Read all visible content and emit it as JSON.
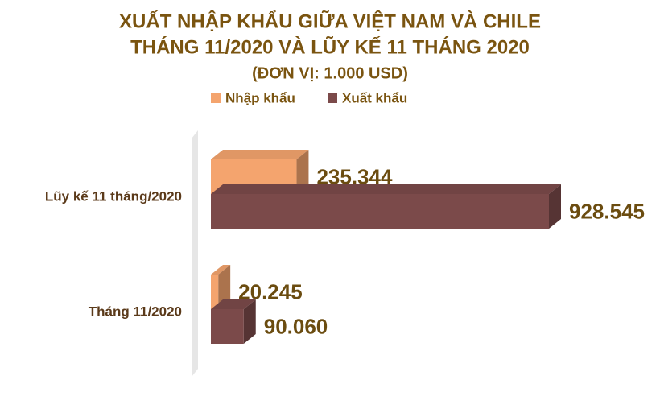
{
  "chart_data": {
    "type": "hbar3d",
    "title": "XUẤT NHẬP KHẨU GIỮA VIỆT NAM VÀ CHILE",
    "subtitle": "THÁNG 11/2020 VÀ LŨY KẾ 11 THÁNG 2020",
    "unit": "(ĐƠN VỊ: 1.000 USD)",
    "categories": [
      "Lũy kế 11 tháng/2020",
      "Tháng 11/2020"
    ],
    "series": [
      {
        "name": "Nhập khẩu",
        "color": "#f4a46e",
        "values": [
          235344,
          20245
        ],
        "value_labels": [
          "235.344",
          "20.245"
        ]
      },
      {
        "name": "Xuất khẩu",
        "color": "#7b4a4a",
        "values": [
          928545,
          90060
        ],
        "value_labels": [
          "928.545",
          "90.060"
        ]
      }
    ]
  }
}
